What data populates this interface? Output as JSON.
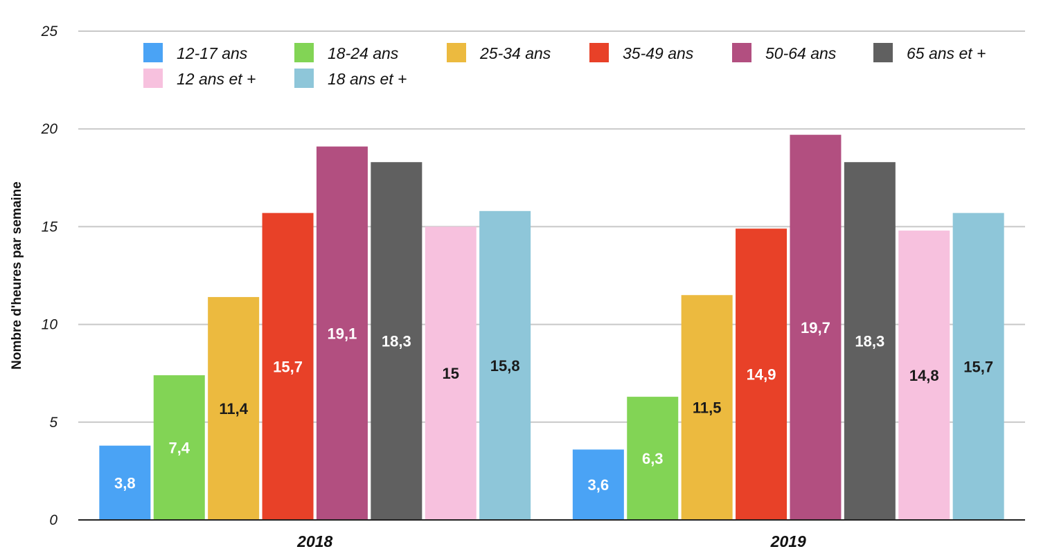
{
  "chart_data": {
    "type": "bar",
    "ylabel": "Nombre d'heures par semaine",
    "xlabel": "",
    "ylim": [
      0,
      25
    ],
    "yticks": [
      "0",
      "5",
      "10",
      "15",
      "20",
      "25"
    ],
    "grid": true,
    "legend_position": "top",
    "categories": [
      "2018",
      "2019"
    ],
    "series": [
      {
        "name": "12-17 ans",
        "color": "#4aa3f5",
        "label_color": "#ffffff",
        "values": [
          3.8,
          3.6
        ],
        "labels": [
          "3,8",
          "3,6"
        ]
      },
      {
        "name": "18-24 ans",
        "color": "#82d455",
        "label_color": "#ffffff",
        "values": [
          7.4,
          6.3
        ],
        "labels": [
          "7,4",
          "6,3"
        ]
      },
      {
        "name": "25-34 ans",
        "color": "#ecba3f",
        "label_color": "#1a1a1a",
        "values": [
          11.4,
          11.5
        ],
        "labels": [
          "11,4",
          "11,5"
        ]
      },
      {
        "name": "35-49 ans",
        "color": "#e84128",
        "label_color": "#ffffff",
        "values": [
          15.7,
          14.9
        ],
        "labels": [
          "15,7",
          "14,9"
        ]
      },
      {
        "name": "50-64 ans",
        "color": "#b24f80",
        "label_color": "#ffffff",
        "values": [
          19.1,
          19.7
        ],
        "labels": [
          "19,1",
          "19,7"
        ]
      },
      {
        "name": "65 ans et +",
        "color": "#606060",
        "label_color": "#ffffff",
        "values": [
          18.3,
          18.3
        ],
        "labels": [
          "18,3",
          "18,3"
        ]
      },
      {
        "name": "12 ans et +",
        "color": "#f7c1de",
        "label_color": "#1a1a1a",
        "values": [
          15,
          14.8
        ],
        "labels": [
          "15",
          "14,8"
        ]
      },
      {
        "name": "18 ans et +",
        "color": "#8ec6d9",
        "label_color": "#1a1a1a",
        "values": [
          15.8,
          15.7
        ],
        "labels": [
          "15,8",
          "15,7"
        ]
      }
    ]
  }
}
